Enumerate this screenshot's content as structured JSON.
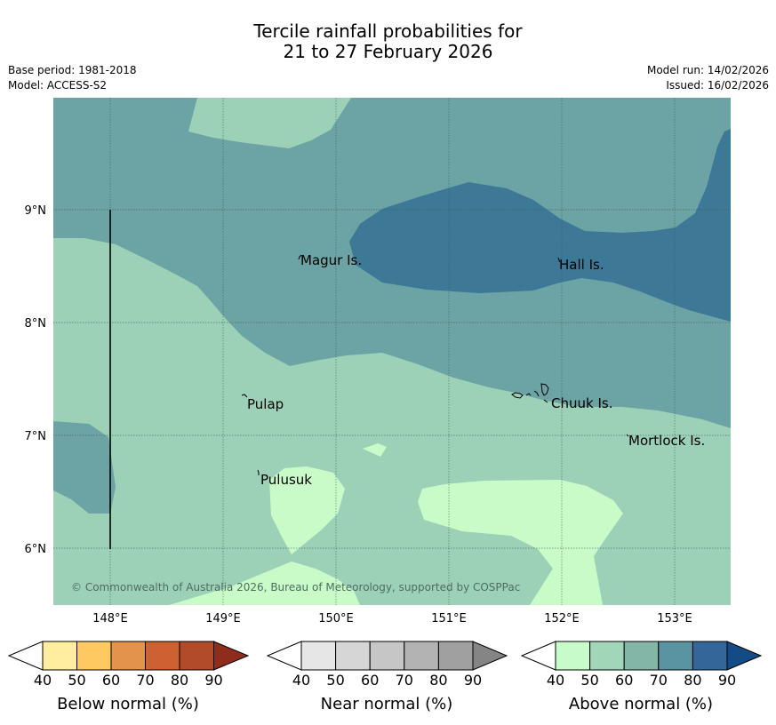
{
  "header": {
    "title_line1": "Tercile rainfall probabilities for",
    "title_line2": "21 to 27 February 2026",
    "base_period": "Base period: 1981-2018",
    "model": "Model: ACCESS-S2",
    "model_run": "Model run: 14/02/2026",
    "issued": "Issued: 16/02/2026"
  },
  "map": {
    "lat_labels": [
      "9°N",
      "8°N",
      "7°N",
      "6°N"
    ],
    "lon_labels": [
      "148°E",
      "149°E",
      "150°E",
      "151°E",
      "152°E",
      "153°E"
    ],
    "places": [
      "Magur Is.",
      "Hall Is.",
      "Pulap",
      "Chuuk Is.",
      "Mortlock Is.",
      "Pulusuk"
    ],
    "copyright": "© Commonwealth of Australia 2026, Bureau of Meteorology, supported by COSPPac",
    "colors": {
      "above_50_60": "#9dd1b7",
      "above_60_70": "#6ca3a5",
      "above_70_80": "#3d7896",
      "above_40_50": "#c9fbc9"
    }
  },
  "legends": [
    {
      "title": "Below normal (%)",
      "ticks": [
        "40",
        "50",
        "60",
        "70",
        "80",
        "90"
      ],
      "colors": [
        "#ffffff",
        "#ffeda0",
        "#fec961",
        "#e3944a",
        "#cd6132",
        "#b24b2a",
        "#8e2d1b"
      ]
    },
    {
      "title": "Near normal (%)",
      "ticks": [
        "40",
        "50",
        "60",
        "70",
        "80",
        "90"
      ],
      "colors": [
        "#ffffff",
        "#e6e6e6",
        "#d6d6d6",
        "#c6c6c6",
        "#b3b3b3",
        "#a0a0a0",
        "#858585"
      ]
    },
    {
      "title": "Above normal (%)",
      "ticks": [
        "40",
        "50",
        "60",
        "70",
        "80",
        "90"
      ],
      "colors": [
        "#ffffff",
        "#c8fbca",
        "#a2d6b8",
        "#83b6a6",
        "#5a93a2",
        "#34669a",
        "#134b87"
      ]
    }
  ]
}
